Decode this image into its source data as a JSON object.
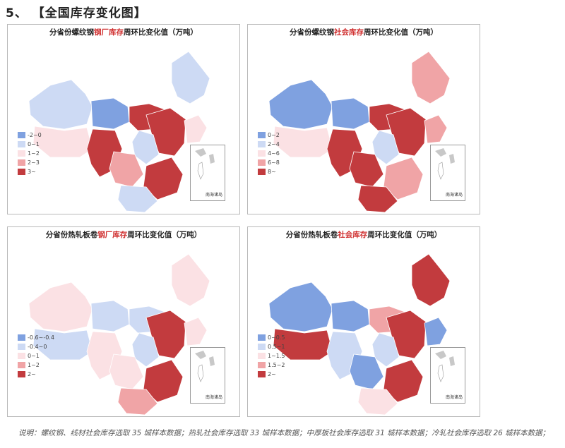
{
  "heading": "5、 【全国库存变化图】",
  "colors": {
    "c1": "#7fa1e0",
    "c2": "#cddaf4",
    "c3": "#fbe1e4",
    "c4": "#f0a4a6",
    "c5": "#c23b3e",
    "grey": "#c8c8c8"
  },
  "panels": [
    {
      "title_pre": "分省份螺纹钢",
      "title_hl": "钢厂库存",
      "title_post": "周环比变化值（万吨）",
      "legend": [
        "-2~0",
        "0~1",
        "1~2",
        "2~3",
        "3~"
      ],
      "inset_label": "南海诸岛",
      "regions": [
        "c2",
        "c1",
        "c2",
        "c3",
        "c5",
        "c5",
        "c5",
        "c2",
        "c4",
        "c5",
        "c2",
        "c3"
      ]
    },
    {
      "title_pre": "分省份螺纹钢",
      "title_hl": "社会库存",
      "title_post": "周环比变化值（万吨）",
      "legend": [
        "0~2",
        "2~4",
        "4~6",
        "6~8",
        "8~"
      ],
      "inset_label": "南海诸岛",
      "regions": [
        "c1",
        "c1",
        "c4",
        "c3",
        "c5",
        "c5",
        "c5",
        "c2",
        "c5",
        "c4",
        "c5",
        "c4"
      ]
    },
    {
      "title_pre": "分省份热轧板卷",
      "title_hl": "钢厂库存",
      "title_post": "周环比变化值（万吨）",
      "legend": [
        "-0.6~-0.4",
        "-0.4~0",
        "0~1",
        "1~2",
        "2~"
      ],
      "inset_label": "南海诸岛",
      "regions": [
        "c3",
        "c2",
        "c3",
        "c2",
        "c2",
        "c3",
        "c5",
        "c2",
        "c3",
        "c5",
        "c4",
        "c3"
      ]
    },
    {
      "title_pre": "分省份热轧板卷",
      "title_hl": "社会库存",
      "title_post": "周环比变化值（万吨）",
      "legend": [
        "0~0.5",
        "0.5~1",
        "1~1.5",
        "1.5~2",
        "2~"
      ],
      "inset_label": "南海诸岛",
      "regions": [
        "c1",
        "c1",
        "c5",
        "c5",
        "c4",
        "c2",
        "c5",
        "c2",
        "c1",
        "c5",
        "c3",
        "c1"
      ]
    }
  ],
  "note": "说明：螺纹钢、线材社会库存选取 35 城样本数据；热轧社会库存选取 33 城样本数据；中厚板社会库存选取 31 城样本数据；冷轧社会库存选取 26 城样本数据；"
}
